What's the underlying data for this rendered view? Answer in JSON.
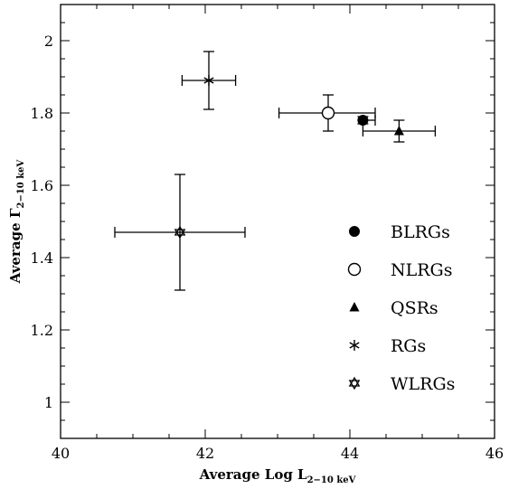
{
  "chart_data": {
    "type": "scatter",
    "title": "",
    "xlabel": "Average Log L",
    "xlabel_sub": "2−10 keV",
    "ylabel": "Average Γ",
    "ylabel_sub": "2−10 keV",
    "xlim": [
      40,
      46
    ],
    "ylim": [
      0.9,
      2.1
    ],
    "xticks": [
      40,
      42,
      44,
      46
    ],
    "yticks": [
      1,
      1.2,
      1.4,
      1.6,
      1.8,
      2
    ],
    "xtick_labels": [
      "40",
      "42",
      "44",
      "46"
    ],
    "ytick_labels": [
      "1",
      "1.2",
      "1.4",
      "1.6",
      "1.8",
      "2"
    ],
    "grid": false,
    "legend_position": "lower-right",
    "series": [
      {
        "name": "BLRGs",
        "marker": "filled-circle",
        "x": 44.18,
        "y": 1.78,
        "xerr": [
          44.18,
          44.35
        ],
        "yerr": [
          1.77,
          1.79
        ]
      },
      {
        "name": "NLRGs",
        "marker": "open-circle",
        "x": 43.7,
        "y": 1.8,
        "xerr": [
          43.02,
          44.35
        ],
        "yerr": [
          1.75,
          1.85
        ]
      },
      {
        "name": "QSRs",
        "marker": "filled-triangle",
        "x": 44.68,
        "y": 1.75,
        "xerr": [
          44.18,
          45.18
        ],
        "yerr": [
          1.72,
          1.78
        ]
      },
      {
        "name": "RGs",
        "marker": "asterisk",
        "x": 42.05,
        "y": 1.89,
        "xerr": [
          41.68,
          42.42
        ],
        "yerr": [
          1.81,
          1.97
        ]
      },
      {
        "name": "WLRGs",
        "marker": "star-of-david",
        "x": 41.65,
        "y": 1.47,
        "xerr": [
          40.75,
          42.55
        ],
        "yerr": [
          1.31,
          1.63
        ]
      }
    ]
  }
}
